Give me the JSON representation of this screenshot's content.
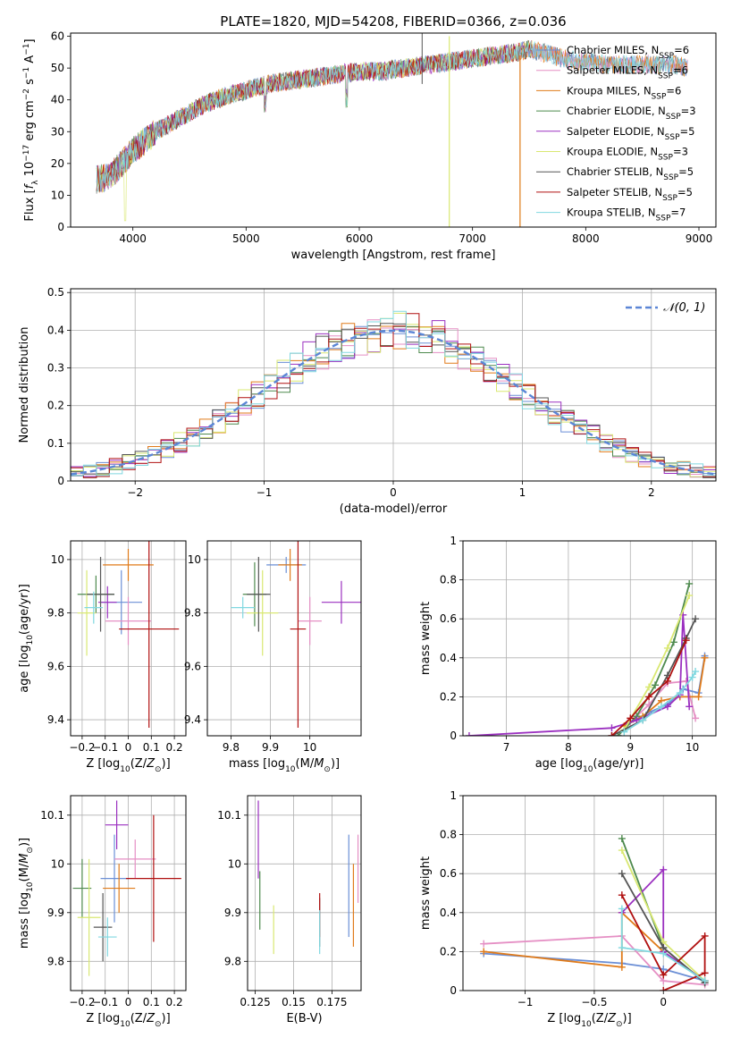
{
  "figure_title": "PLATE=1820, MJD=54208, FIBERID=0366, z=0.036",
  "series_colors": [
    "#6b8fd6",
    "#e58fc4",
    "#e07b1a",
    "#4e8a4e",
    "#9b30c0",
    "#d9e872",
    "#555555",
    "#b01010",
    "#80d8e0"
  ],
  "chart_data": [
    {
      "id": "spectrum",
      "type": "line",
      "title": "PLATE=1820, MJD=54208, FIBERID=0366, z=0.036",
      "xlabel": "wavelength [Angstrom, rest frame]",
      "ylabel": "Flux [f_λ 10^-17 erg cm^-2 s^-1 A^-1]",
      "xlim": [
        3450,
        9150
      ],
      "ylim": [
        0,
        61
      ],
      "xticks": [
        4000,
        5000,
        6000,
        7000,
        8000,
        9000
      ],
      "yticks": [
        0,
        10,
        20,
        30,
        40,
        50,
        60
      ],
      "legend_position": "top-right",
      "legend": [
        "Chabrier MILES, N_SSP=6",
        "Salpeter MILES, N_SSP=6",
        "Kroupa MILES, N_SSP=6",
        "Chabrier ELODIE, N_SSP=3",
        "Salpeter ELODIE, N_SSP=5",
        "Kroupa ELODIE, N_SSP=3",
        "Chabrier STELIB, N_SSP=5",
        "Salpeter STELIB, N_SSP=5",
        "Kroupa STELIB, N_SSP=7"
      ],
      "continuum": {
        "x": [
          3680,
          3800,
          3900,
          4000,
          4100,
          4200,
          4400,
          4600,
          4800,
          5000,
          5200,
          5400,
          5600,
          5800,
          6000,
          6200,
          6400,
          6600,
          6800,
          7000,
          7200,
          7400,
          7500,
          7600,
          7700,
          7800,
          8000,
          8200,
          8400,
          8600,
          8800,
          8900
        ],
        "y": [
          15,
          16,
          20,
          24,
          27,
          30,
          34,
          38,
          41,
          43,
          45,
          46,
          47,
          48,
          49,
          49,
          50,
          51,
          52,
          53,
          54,
          55,
          56,
          55,
          54,
          53,
          52,
          51,
          51,
          51,
          51,
          50
        ]
      },
      "grid": false
    },
    {
      "id": "residual-histogram",
      "type": "line",
      "xlabel": "(data-model)/error",
      "ylabel": "Normed distribution",
      "xlim": [
        -2.5,
        2.5
      ],
      "ylim": [
        0,
        0.51
      ],
      "xticks": [
        -2,
        -1,
        0,
        1,
        2
      ],
      "yticks": [
        0.0,
        0.1,
        0.2,
        0.3,
        0.4,
        0.5
      ],
      "legend": [
        "𝒩(0, 1)"
      ],
      "legend_position": "top-right",
      "bin_width": 0.1,
      "model": {
        "name": "𝒩(0, 1)",
        "mean": 0,
        "sigma": 1
      },
      "grid": true
    },
    {
      "id": "age-vs-Z",
      "type": "scatter",
      "xlabel": "Z [log10(Z/Z⊙)]",
      "ylabel": "age [log10(age/yr)]",
      "xlim": [
        -0.25,
        0.25
      ],
      "ylim": [
        9.34,
        10.07
      ],
      "xticks": [
        -0.2,
        -0.1,
        0.0,
        0.1,
        0.2
      ],
      "yticks": [
        9.4,
        9.6,
        9.8,
        10.0
      ],
      "points": [
        {
          "x": -0.03,
          "y": 9.84,
          "xerr": 0.09,
          "yerr": 0.12
        },
        {
          "x": 0.0,
          "y": 9.77,
          "xerr": 0.1,
          "yerr": 0.09
        },
        {
          "x": 0.0,
          "y": 9.98,
          "xerr": 0.11,
          "yerr": 0.06
        },
        {
          "x": -0.14,
          "y": 9.87,
          "xerr": 0.08,
          "yerr": 0.07
        },
        {
          "x": -0.09,
          "y": 9.84,
          "xerr": 0.04,
          "yerr": 0.06
        },
        {
          "x": -0.18,
          "y": 9.8,
          "xerr": 0.04,
          "yerr": 0.16
        },
        {
          "x": -0.12,
          "y": 9.87,
          "xerr": 0.06,
          "yerr": 0.14
        },
        {
          "x": 0.09,
          "y": 9.74,
          "xerr": 0.13,
          "yerr": 0.37
        },
        {
          "x": -0.15,
          "y": 9.82,
          "xerr": 0.04,
          "yerr": 0.06
        }
      ],
      "grid": true
    },
    {
      "id": "age-vs-mass",
      "type": "scatter",
      "xlabel": "mass [log10(M/M⊙)]",
      "ylabel": "",
      "xlim": [
        9.74,
        10.13
      ],
      "ylim": [
        9.34,
        10.07
      ],
      "xticks": [
        9.8,
        9.9,
        10.0
      ],
      "yticks": [
        9.4,
        9.6,
        9.8,
        10.0
      ],
      "points": [
        {
          "x": 9.94,
          "y": 9.98,
          "xerr": 0.05,
          "yerr": 0.03
        },
        {
          "x": 10.0,
          "y": 9.77,
          "xerr": 0.03,
          "yerr": 0.09
        },
        {
          "x": 9.95,
          "y": 9.98,
          "xerr": 0.03,
          "yerr": 0.06
        },
        {
          "x": 9.86,
          "y": 9.87,
          "xerr": 0.03,
          "yerr": 0.12
        },
        {
          "x": 10.08,
          "y": 9.84,
          "xerr": 0.05,
          "yerr": 0.08
        },
        {
          "x": 9.88,
          "y": 9.8,
          "xerr": 0.04,
          "yerr": 0.16
        },
        {
          "x": 9.87,
          "y": 9.87,
          "xerr": 0.03,
          "yerr": 0.14
        },
        {
          "x": 9.97,
          "y": 9.74,
          "xerr": 0.02,
          "yerr": 0.37
        },
        {
          "x": 9.83,
          "y": 9.82,
          "xerr": 0.03,
          "yerr": 0.04
        }
      ],
      "grid": true
    },
    {
      "id": "mass-weight-vs-age",
      "type": "line",
      "xlabel": "age [log10(age/yr)]",
      "ylabel": "mass weight",
      "xlim": [
        6.3,
        10.38
      ],
      "ylim": [
        0,
        1.0
      ],
      "xticks": [
        7,
        8,
        9,
        10
      ],
      "yticks": [
        0.0,
        0.2,
        0.4,
        0.6,
        0.8,
        1.0
      ],
      "series": [
        {
          "x": [
            8.8,
            9.0,
            9.3,
            9.6,
            9.85,
            10.1,
            10.2
          ],
          "y": [
            0.0,
            0.07,
            0.12,
            0.16,
            0.24,
            0.22,
            0.41
          ]
        },
        {
          "x": [
            9.0,
            9.3,
            9.6,
            9.9,
            10.05
          ],
          "y": [
            0.07,
            0.16,
            0.27,
            0.28,
            0.09
          ]
        },
        {
          "x": [
            8.9,
            9.2,
            9.5,
            9.8,
            10.1,
            10.2
          ],
          "y": [
            0.05,
            0.1,
            0.18,
            0.2,
            0.2,
            0.4
          ]
        },
        {
          "x": [
            8.8,
            9.1,
            9.4,
            9.7,
            9.95
          ],
          "y": [
            0.0,
            0.1,
            0.26,
            0.48,
            0.78
          ]
        },
        {
          "x": [
            6.4,
            8.7,
            9.1,
            9.6,
            9.8,
            9.85,
            9.95
          ],
          "y": [
            0.0,
            0.04,
            0.08,
            0.15,
            0.21,
            0.62,
            0.15
          ]
        },
        {
          "x": [
            8.9,
            9.3,
            9.6,
            9.95
          ],
          "y": [
            0.03,
            0.25,
            0.45,
            0.72
          ]
        },
        {
          "x": [
            8.7,
            9.2,
            9.6,
            9.9,
            10.05
          ],
          "y": [
            0.0,
            0.08,
            0.31,
            0.5,
            0.6
          ]
        },
        {
          "x": [
            8.7,
            9.0,
            9.3,
            9.6,
            9.9
          ],
          "y": [
            0.0,
            0.09,
            0.2,
            0.28,
            0.49
          ]
        },
        {
          "x": [
            8.9,
            9.2,
            9.5,
            9.8,
            10.0,
            10.05
          ],
          "y": [
            0.02,
            0.08,
            0.15,
            0.22,
            0.3,
            0.33
          ]
        }
      ],
      "grid": true
    },
    {
      "id": "mass-vs-Z",
      "type": "scatter",
      "xlabel": "Z [log10(Z/Z⊙)]",
      "ylabel": "mass [log10(M/M⊙)]",
      "xlim": [
        -0.25,
        0.25
      ],
      "ylim": [
        9.74,
        10.14
      ],
      "xticks": [
        -0.2,
        -0.1,
        0.0,
        0.1,
        0.2
      ],
      "yticks": [
        9.8,
        9.9,
        10.0,
        10.1
      ],
      "points": [
        {
          "x": -0.06,
          "y": 9.97,
          "xerr": 0.06,
          "yerr": 0.09
        },
        {
          "x": 0.03,
          "y": 10.01,
          "xerr": 0.09,
          "yerr": 0.04
        },
        {
          "x": -0.04,
          "y": 9.95,
          "xerr": 0.07,
          "yerr": 0.05
        },
        {
          "x": -0.2,
          "y": 9.95,
          "xerr": 0.04,
          "yerr": 0.06
        },
        {
          "x": -0.05,
          "y": 10.08,
          "xerr": 0.05,
          "yerr": 0.05
        },
        {
          "x": -0.17,
          "y": 9.89,
          "xerr": 0.05,
          "yerr": 0.12
        },
        {
          "x": -0.11,
          "y": 9.87,
          "xerr": 0.04,
          "yerr": 0.07
        },
        {
          "x": 0.11,
          "y": 9.97,
          "xerr": 0.12,
          "yerr": 0.13
        },
        {
          "x": -0.09,
          "y": 9.85,
          "xerr": 0.04,
          "yerr": 0.04
        }
      ],
      "grid": true
    },
    {
      "id": "mass-vs-EBV",
      "type": "scatter",
      "xlabel": "E(B-V)",
      "ylabel": "",
      "xlim": [
        0.12,
        0.194
      ],
      "ylim": [
        9.74,
        10.14
      ],
      "xticks": [
        0.125,
        0.15,
        0.175
      ],
      "yticks": [
        9.8,
        9.9,
        10.0,
        10.1
      ],
      "points": [
        {
          "x": 0.186,
          "y": 9.955,
          "yerr": 0.105
        },
        {
          "x": 0.192,
          "y": 9.99,
          "yerr": 0.07
        },
        {
          "x": 0.189,
          "y": 9.915,
          "yerr": 0.085
        },
        {
          "x": 0.128,
          "y": 9.925,
          "yerr": 0.06
        },
        {
          "x": 0.127,
          "y": 10.05,
          "yerr": 0.08
        },
        {
          "x": 0.137,
          "y": 9.865,
          "yerr": 0.05
        },
        {
          "x": 0.167,
          "y": 9.88,
          "yerr": 0.05
        },
        {
          "x": 0.167,
          "y": 9.895,
          "yerr": 0.045
        },
        {
          "x": 0.167,
          "y": 9.86,
          "yerr": 0.045
        }
      ],
      "grid": true
    },
    {
      "id": "mass-weight-vs-Z",
      "type": "line",
      "xlabel": "Z [log10(Z/Z⊙)]",
      "ylabel": "mass weight",
      "xlim": [
        -1.45,
        0.38
      ],
      "ylim": [
        0,
        1.0
      ],
      "xticks": [
        -1.0,
        -0.5,
        0.0
      ],
      "yticks": [
        0.0,
        0.2,
        0.4,
        0.6,
        0.8,
        1.0
      ],
      "series": [
        {
          "x": [
            -1.3,
            -0.3,
            0.0,
            0.3
          ],
          "y": [
            0.19,
            0.14,
            0.11,
            0.05
          ]
        },
        {
          "x": [
            -1.3,
            -0.3,
            0.0,
            0.3
          ],
          "y": [
            0.24,
            0.28,
            0.05,
            0.03
          ]
        },
        {
          "x": [
            -1.3,
            -0.3,
            -0.3,
            0.0,
            0.3
          ],
          "y": [
            0.2,
            0.12,
            0.4,
            0.2,
            0.05
          ]
        },
        {
          "x": [
            -0.3,
            0.0,
            0.3
          ],
          "y": [
            0.78,
            0.22,
            0.04
          ]
        },
        {
          "x": [
            -0.3,
            0.0,
            0.0,
            0.3
          ],
          "y": [
            0.4,
            0.62,
            0.2,
            0.05
          ]
        },
        {
          "x": [
            -0.3,
            0.0,
            0.3
          ],
          "y": [
            0.72,
            0.25,
            0.05
          ]
        },
        {
          "x": [
            -0.3,
            0.0,
            0.3
          ],
          "y": [
            0.6,
            0.22,
            0.04
          ]
        },
        {
          "x": [
            -0.3,
            0.0,
            0.3,
            0.3,
            0.0
          ],
          "y": [
            0.49,
            0.08,
            0.28,
            0.09,
            0.0
          ]
        },
        {
          "x": [
            -0.3,
            -0.3,
            0.0,
            0.3
          ],
          "y": [
            0.42,
            0.22,
            0.19,
            0.05
          ]
        }
      ],
      "grid": true
    }
  ]
}
